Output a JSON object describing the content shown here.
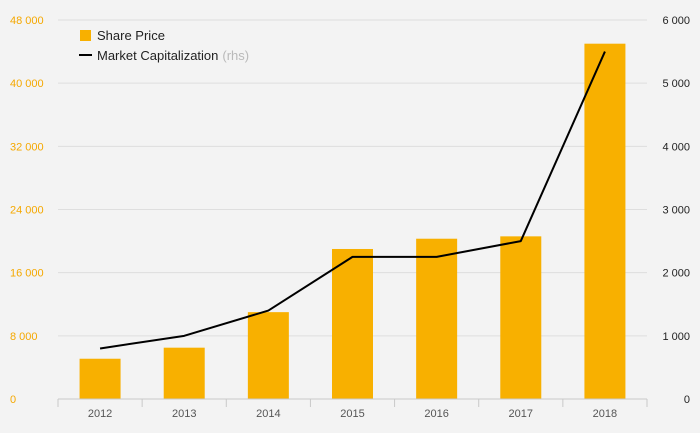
{
  "chart_data": {
    "type": "bar",
    "categories": [
      "2012",
      "2013",
      "2014",
      "2015",
      "2016",
      "2017",
      "2018"
    ],
    "series": [
      {
        "name": "Share Price",
        "type": "bar",
        "axis": "left",
        "color": "#f8b000",
        "values": [
          5100,
          6500,
          11000,
          19000,
          20300,
          20600,
          45000
        ]
      },
      {
        "name": "Market Capitalization",
        "name_suffix": "(rhs)",
        "type": "line",
        "axis": "right",
        "color": "#000000",
        "values": [
          800,
          1000,
          1400,
          2250,
          2250,
          2500,
          5500
        ]
      }
    ],
    "y_left": {
      "range": [
        0,
        48000
      ],
      "ticks": [
        0,
        8000,
        16000,
        24000,
        32000,
        40000,
        48000
      ],
      "tick_labels": [
        "0",
        "8 000",
        "16 000",
        "24 000",
        "32 000",
        "40 000",
        "48 000"
      ],
      "color": "#f5a800"
    },
    "y_right": {
      "range": [
        0,
        6000
      ],
      "ticks": [
        0,
        1000,
        2000,
        3000,
        4000,
        5000,
        6000
      ],
      "tick_labels": [
        "0",
        "1 000",
        "2 000",
        "3 000",
        "4 000",
        "5 000",
        "6 000"
      ],
      "color": "#222222"
    },
    "grid": true,
    "legend_position": "top-left",
    "title": "",
    "xlabel": "",
    "ylabel": ""
  }
}
